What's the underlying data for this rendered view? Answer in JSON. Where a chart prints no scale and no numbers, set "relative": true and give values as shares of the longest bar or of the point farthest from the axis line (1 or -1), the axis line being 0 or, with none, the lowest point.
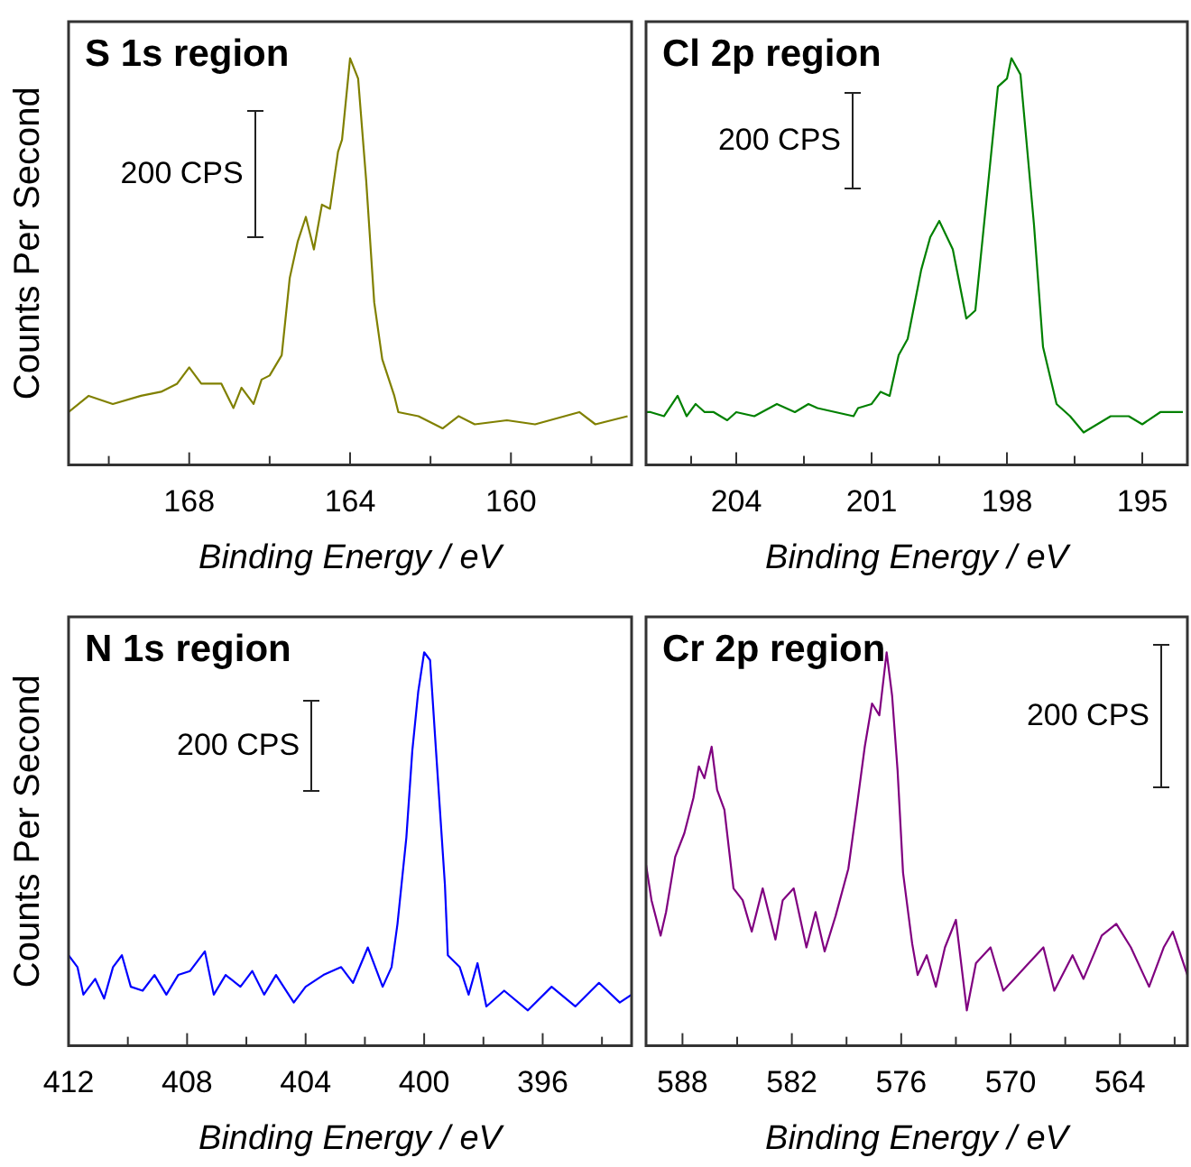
{
  "chart_data": [
    {
      "type": "line",
      "title": "S 1s region",
      "xlabel": "Binding Energy / eV",
      "ylabel": "Counts Per Second",
      "relative": true,
      "tick_labels": "x",
      "xlim": [
        171,
        157
      ],
      "xticks": [
        {
          "value": 170,
          "label": null
        },
        168,
        {
          "value": 166,
          "label": null
        },
        164,
        {
          "value": 162,
          "label": null
        },
        160,
        {
          "value": 158,
          "label": null
        }
      ],
      "annotations": [
        "200 CPS"
      ],
      "series": [
        {
          "color": "#808000",
          "x": [
            171.0,
            170.5,
            169.9,
            169.2,
            168.7,
            168.3,
            168.0,
            167.7,
            167.2,
            166.9,
            166.7,
            166.4,
            166.2,
            166.0,
            165.7,
            165.5,
            165.3,
            165.1,
            164.9,
            164.7,
            164.5,
            164.3,
            164.2,
            164.0,
            163.8,
            163.6,
            163.4,
            163.2,
            162.9,
            162.8,
            162.3,
            161.7,
            161.3,
            160.9,
            160.1,
            159.4,
            158.3,
            157.9,
            157.1
          ],
          "values": [
            0.13,
            0.17,
            0.15,
            0.17,
            0.18,
            0.2,
            0.24,
            0.2,
            0.2,
            0.14,
            0.19,
            0.15,
            0.21,
            0.22,
            0.27,
            0.46,
            0.55,
            0.61,
            0.53,
            0.64,
            0.63,
            0.77,
            0.8,
            1.0,
            0.95,
            0.7,
            0.4,
            0.26,
            0.17,
            0.13,
            0.12,
            0.09,
            0.12,
            0.1,
            0.11,
            0.1,
            0.13,
            0.1,
            0.12
          ]
        }
      ]
    },
    {
      "type": "line",
      "title": "Cl 2p region",
      "xlabel": "Binding Energy / eV",
      "relative": true,
      "tick_labels": "x",
      "xlim": [
        206,
        194
      ],
      "xticks": [
        {
          "value": 205,
          "label": null
        },
        204,
        {
          "value": 202.5,
          "label": null
        },
        201,
        {
          "value": 199.5,
          "label": null
        },
        198,
        {
          "value": 196.5,
          "label": null
        },
        195
      ],
      "annotations": [
        "200 CPS"
      ],
      "series": [
        {
          "color": "#008000",
          "x": [
            206.0,
            205.9,
            205.6,
            205.3,
            205.1,
            204.9,
            204.7,
            204.5,
            204.2,
            204.0,
            203.6,
            203.1,
            202.7,
            202.4,
            202.2,
            201.8,
            201.4,
            201.3,
            201.0,
            200.8,
            200.6,
            200.4,
            200.2,
            199.9,
            199.7,
            199.5,
            199.2,
            198.9,
            198.7,
            198.4,
            198.2,
            198.0,
            197.9,
            197.7,
            197.4,
            197.2,
            196.9,
            196.6,
            196.3,
            196.0,
            195.7,
            195.3,
            195.0,
            194.6,
            194.1
          ],
          "values": [
            0.13,
            0.13,
            0.12,
            0.17,
            0.12,
            0.15,
            0.13,
            0.13,
            0.11,
            0.13,
            0.12,
            0.15,
            0.13,
            0.15,
            0.14,
            0.13,
            0.12,
            0.14,
            0.15,
            0.18,
            0.17,
            0.27,
            0.31,
            0.48,
            0.56,
            0.6,
            0.53,
            0.36,
            0.38,
            0.71,
            0.93,
            0.95,
            1.0,
            0.96,
            0.59,
            0.29,
            0.15,
            0.12,
            0.08,
            0.1,
            0.12,
            0.12,
            0.1,
            0.13,
            0.13
          ]
        }
      ]
    },
    {
      "type": "line",
      "title": "N 1s region",
      "xlabel": "Binding Energy / eV",
      "ylabel": "Counts Per Second",
      "relative": true,
      "tick_labels": "x",
      "xlim": [
        412,
        393
      ],
      "xticks": [
        412,
        {
          "value": 410,
          "label": null
        },
        408,
        {
          "value": 406,
          "label": null
        },
        404,
        {
          "value": 402,
          "label": null
        },
        400,
        {
          "value": 398,
          "label": null
        },
        396,
        {
          "value": 394,
          "label": null
        }
      ],
      "annotations": [
        "200 CPS"
      ],
      "series": [
        {
          "color": "#0000ff",
          "x": [
            412.0,
            411.7,
            411.5,
            411.1,
            410.8,
            410.5,
            410.2,
            409.9,
            409.5,
            409.1,
            408.7,
            408.3,
            407.9,
            407.4,
            407.1,
            406.7,
            406.2,
            405.8,
            405.4,
            405.0,
            404.4,
            404.0,
            403.4,
            402.8,
            402.4,
            401.9,
            401.4,
            401.1,
            400.9,
            400.6,
            400.4,
            400.2,
            400.0,
            399.8,
            399.6,
            399.3,
            399.2,
            398.8,
            398.5,
            398.2,
            397.9,
            397.3,
            396.5,
            395.7,
            394.9,
            394.1,
            393.4,
            393.0
          ],
          "values": [
            0.23,
            0.2,
            0.13,
            0.17,
            0.12,
            0.2,
            0.23,
            0.15,
            0.14,
            0.18,
            0.13,
            0.18,
            0.19,
            0.24,
            0.13,
            0.18,
            0.15,
            0.19,
            0.13,
            0.18,
            0.11,
            0.15,
            0.18,
            0.2,
            0.16,
            0.25,
            0.15,
            0.2,
            0.31,
            0.53,
            0.75,
            0.9,
            1.0,
            0.98,
            0.75,
            0.41,
            0.23,
            0.2,
            0.13,
            0.21,
            0.1,
            0.14,
            0.09,
            0.15,
            0.1,
            0.16,
            0.11,
            0.13
          ]
        }
      ]
    },
    {
      "type": "line",
      "title": "Cr 2p region",
      "xlabel": "Binding Energy / eV",
      "relative": true,
      "tick_labels": "x",
      "xlim": [
        590,
        560.3
      ],
      "xticks": [
        588,
        {
          "value": 585,
          "label": null
        },
        582,
        {
          "value": 579,
          "label": null
        },
        576,
        {
          "value": 573,
          "label": null
        },
        570,
        {
          "value": 567,
          "label": null
        },
        564,
        {
          "value": 561,
          "label": null
        }
      ],
      "annotations": [
        "200 CPS"
      ],
      "series": [
        {
          "color": "#800080",
          "x": [
            590.0,
            589.7,
            589.2,
            588.9,
            588.4,
            587.9,
            587.4,
            587.1,
            586.8,
            586.4,
            586.1,
            585.7,
            585.2,
            584.7,
            584.2,
            583.6,
            582.9,
            582.5,
            581.9,
            581.2,
            580.7,
            580.2,
            579.6,
            578.9,
            578.4,
            578.0,
            577.6,
            577.2,
            576.8,
            576.5,
            576.2,
            575.9,
            575.4,
            575.1,
            574.6,
            574.1,
            573.6,
            573.0,
            572.4,
            571.9,
            571.1,
            570.4,
            569.8,
            569.2,
            568.2,
            567.6,
            566.6,
            566.0,
            565.0,
            564.2,
            563.4,
            562.4,
            561.6,
            561.1,
            560.3
          ],
          "values": [
            0.46,
            0.37,
            0.28,
            0.34,
            0.48,
            0.54,
            0.63,
            0.71,
            0.68,
            0.76,
            0.65,
            0.6,
            0.4,
            0.37,
            0.29,
            0.4,
            0.27,
            0.37,
            0.4,
            0.25,
            0.34,
            0.24,
            0.33,
            0.45,
            0.62,
            0.76,
            0.87,
            0.84,
            1.0,
            0.89,
            0.7,
            0.44,
            0.26,
            0.18,
            0.23,
            0.15,
            0.25,
            0.32,
            0.09,
            0.21,
            0.25,
            0.14,
            0.17,
            0.2,
            0.25,
            0.14,
            0.23,
            0.17,
            0.28,
            0.31,
            0.25,
            0.15,
            0.25,
            0.29,
            0.18
          ]
        }
      ]
    }
  ]
}
